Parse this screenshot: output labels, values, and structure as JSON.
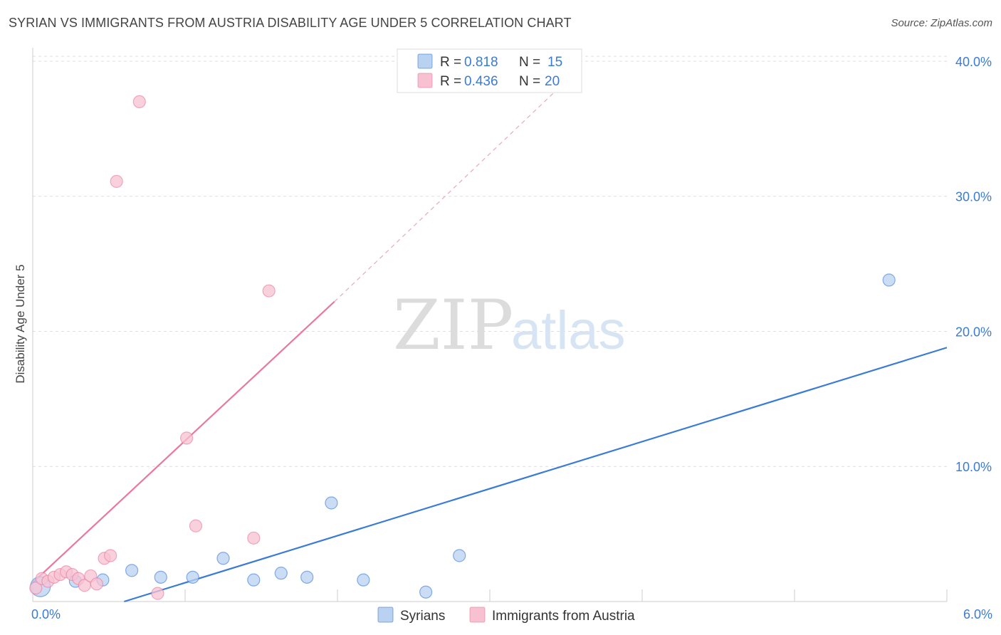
{
  "title": "SYRIAN VS IMMIGRANTS FROM AUSTRIA DISABILITY AGE UNDER 5 CORRELATION CHART",
  "source": "Source: ZipAtlas.com",
  "watermark": {
    "zip": "ZIP",
    "atlas": "atlas"
  },
  "colors": {
    "syrians": "#3a7bd5",
    "syrians_fill": "#b9d2f2",
    "austria": "#e8789f",
    "austria_fill": "#f7c1d2",
    "tick_blue": "#3a7bd5",
    "grid": "#dddddd"
  },
  "legend_top": {
    "rows": [
      {
        "r_label": "R = ",
        "r_value": "0.818",
        "n_label": "N = ",
        "n_value": "15",
        "series": "syrians"
      },
      {
        "r_label": "R = ",
        "r_value": "0.436",
        "n_label": "N = ",
        "n_value": "20",
        "series": "austria"
      }
    ]
  },
  "legend_bottom": [
    {
      "label": "Syrians",
      "series": "syrians"
    },
    {
      "label": "Immigrants from Austria",
      "series": "austria"
    }
  ],
  "chart_data": {
    "type": "scatter",
    "title": "SYRIAN VS IMMIGRANTS FROM AUSTRIA DISABILITY AGE UNDER 5 CORRELATION CHART",
    "xlabel": "",
    "ylabel": "Disability Age Under 5",
    "xlim": [
      0,
      6
    ],
    "ylim": [
      0,
      41
    ],
    "x_ticks": [
      {
        "value": 0,
        "label": "0.0%"
      },
      {
        "value": 6,
        "label": "6.0%"
      }
    ],
    "y_ticks": [
      {
        "value": 10,
        "label": "10.0%"
      },
      {
        "value": 20,
        "label": "20.0%"
      },
      {
        "value": 30,
        "label": "30.0%"
      },
      {
        "value": 40,
        "label": "40.0%"
      }
    ],
    "grid": true,
    "legend_position": "top-center",
    "series": [
      {
        "name": "Syrians",
        "key": "syrians",
        "r": 0.818,
        "n": 15,
        "points": [
          {
            "x": 0.05,
            "y": 1.1,
            "large": true
          },
          {
            "x": 0.28,
            "y": 1.5
          },
          {
            "x": 0.46,
            "y": 1.6
          },
          {
            "x": 0.65,
            "y": 2.3
          },
          {
            "x": 0.84,
            "y": 1.8
          },
          {
            "x": 1.05,
            "y": 1.8
          },
          {
            "x": 1.25,
            "y": 3.2
          },
          {
            "x": 1.45,
            "y": 1.6
          },
          {
            "x": 1.63,
            "y": 2.1
          },
          {
            "x": 1.8,
            "y": 1.8
          },
          {
            "x": 1.96,
            "y": 7.3
          },
          {
            "x": 2.17,
            "y": 1.6
          },
          {
            "x": 2.58,
            "y": 0.7
          },
          {
            "x": 2.8,
            "y": 3.4
          },
          {
            "x": 5.62,
            "y": 23.8
          }
        ],
        "trend": {
          "x1": 0.6,
          "y1": 0,
          "x2": 6.0,
          "y2": 18.8
        }
      },
      {
        "name": "Immigrants from Austria",
        "key": "austria",
        "r": 0.436,
        "n": 20,
        "points": [
          {
            "x": 0.02,
            "y": 1.0
          },
          {
            "x": 0.06,
            "y": 1.7
          },
          {
            "x": 0.1,
            "y": 1.5
          },
          {
            "x": 0.14,
            "y": 1.8
          },
          {
            "x": 0.18,
            "y": 2.0
          },
          {
            "x": 0.22,
            "y": 2.2
          },
          {
            "x": 0.26,
            "y": 2.0
          },
          {
            "x": 0.3,
            "y": 1.7
          },
          {
            "x": 0.34,
            "y": 1.2
          },
          {
            "x": 0.38,
            "y": 1.9
          },
          {
            "x": 0.42,
            "y": 1.3
          },
          {
            "x": 0.47,
            "y": 3.2
          },
          {
            "x": 0.51,
            "y": 3.4
          },
          {
            "x": 0.55,
            "y": 31.1
          },
          {
            "x": 0.7,
            "y": 37.0
          },
          {
            "x": 0.82,
            "y": 0.6
          },
          {
            "x": 1.01,
            "y": 12.1
          },
          {
            "x": 1.07,
            "y": 5.6
          },
          {
            "x": 1.45,
            "y": 4.7
          },
          {
            "x": 1.55,
            "y": 23.0
          }
        ],
        "trend": {
          "x1": 0.0,
          "y1": 1.4,
          "x2": 1.98,
          "y2": 22.2
        },
        "trend_extension": {
          "x1": 1.98,
          "y1": 22.2,
          "x2": 3.6,
          "y2": 39.6
        }
      }
    ]
  }
}
